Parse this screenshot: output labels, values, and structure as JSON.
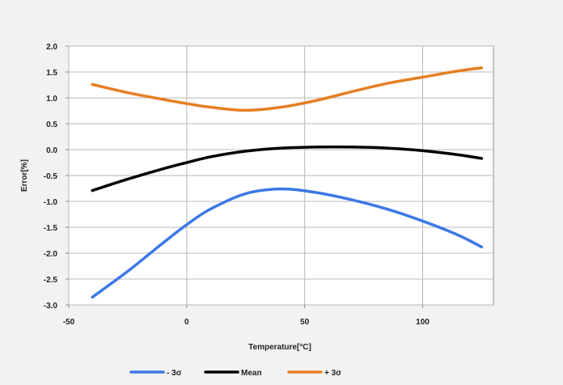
{
  "chart_data": {
    "type": "line",
    "title": "",
    "xlabel": "Temperature[°C]",
    "ylabel": "Error[%]",
    "xlim": [
      -50,
      130
    ],
    "ylim": [
      -3.0,
      2.0
    ],
    "x_ticks": [
      -50,
      0,
      50,
      100
    ],
    "x_tick_labels": [
      "-50",
      "0",
      "50",
      "100"
    ],
    "y_ticks": [
      -3.0,
      -2.5,
      -2.0,
      -1.5,
      -1.0,
      -0.5,
      0.0,
      0.5,
      1.0,
      1.5,
      2.0
    ],
    "y_tick_labels": [
      "-3.0",
      "-2.5",
      "-2.0",
      "-1.5",
      "-1.0",
      "-0.5",
      "0.0",
      "0.5",
      "1.0",
      "1.5",
      "2.0"
    ],
    "grid": true,
    "legend_position": "bottom",
    "series": [
      {
        "name": "- 3σ",
        "color": "#3c78e6",
        "x": [
          -40,
          -25,
          -10,
          0,
          10,
          25,
          40,
          55,
          70,
          85,
          100,
          115,
          125
        ],
        "y": [
          -2.85,
          -2.35,
          -1.8,
          -1.45,
          -1.15,
          -0.85,
          -0.76,
          -0.83,
          -0.97,
          -1.15,
          -1.38,
          -1.65,
          -1.88
        ]
      },
      {
        "name": "Mean",
        "color": "#000000",
        "x": [
          -40,
          -25,
          -10,
          0,
          10,
          25,
          40,
          55,
          70,
          85,
          100,
          115,
          125
        ],
        "y": [
          -0.79,
          -0.57,
          -0.37,
          -0.25,
          -0.14,
          -0.03,
          0.03,
          0.05,
          0.05,
          0.03,
          -0.02,
          -0.1,
          -0.17
        ]
      },
      {
        "name": "+ 3σ",
        "color": "#e67e22",
        "x": [
          -40,
          -25,
          -10,
          0,
          10,
          25,
          40,
          55,
          70,
          85,
          100,
          115,
          125
        ],
        "y": [
          1.26,
          1.1,
          0.97,
          0.89,
          0.82,
          0.76,
          0.82,
          0.95,
          1.12,
          1.28,
          1.4,
          1.52,
          1.58
        ]
      }
    ]
  }
}
